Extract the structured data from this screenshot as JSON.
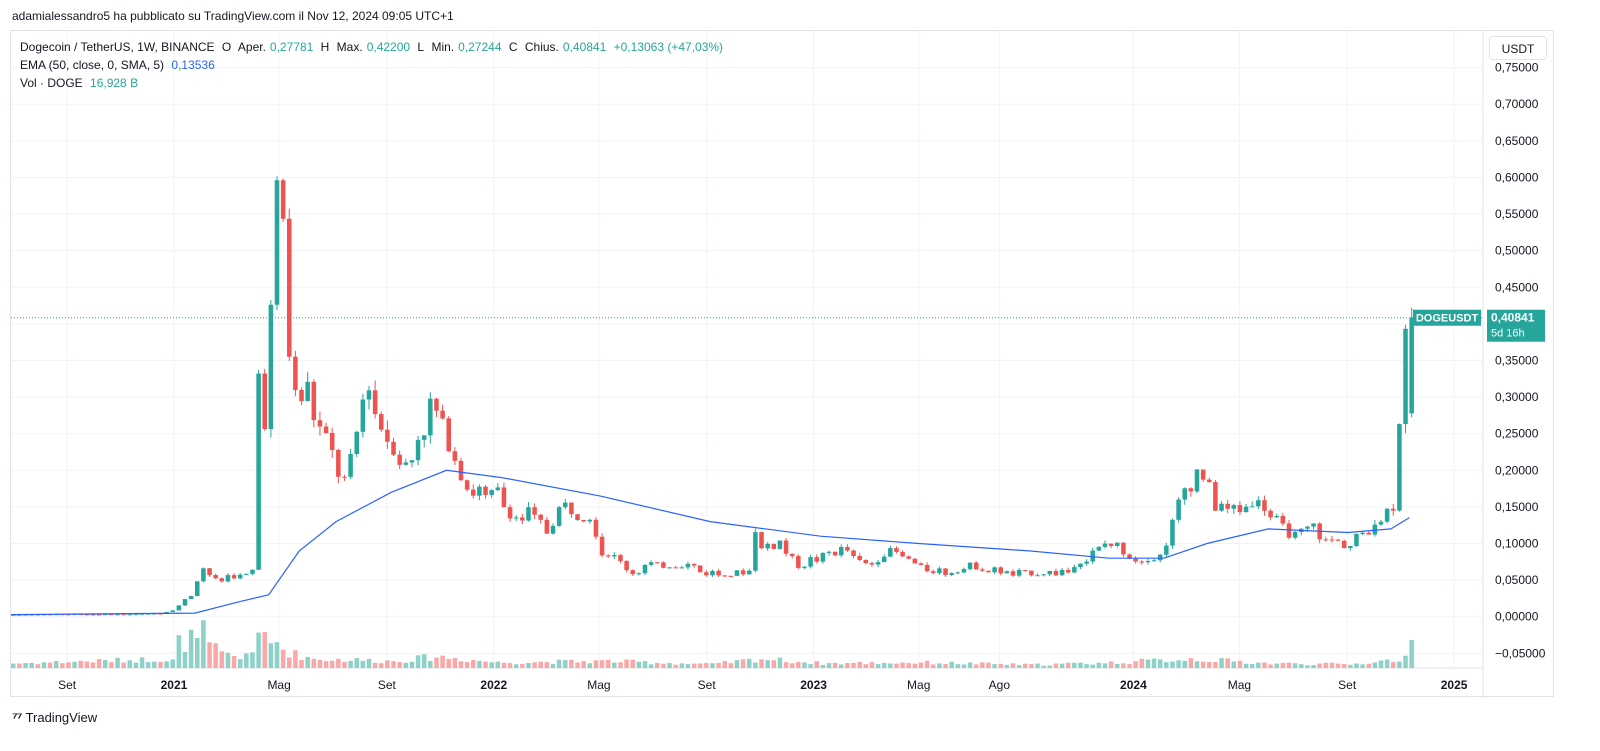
{
  "header": {
    "published_line": "adamialessandro5 ha pubblicato su TradingView.com il Nov 12, 2024 09:05 UTC+1"
  },
  "legend": {
    "symbol": "Dogecoin / TetherUS, 1W, BINANCE",
    "o_label": "O",
    "open_label": "Aper.",
    "open": "0,27781",
    "h_label": "H",
    "high_label": "Max.",
    "high": "0,42200",
    "l_label": "L",
    "low_label": "Min.",
    "low": "0,27244",
    "c_label": "C",
    "close_label": "Chius.",
    "close": "0,40841",
    "change": "+0,13063 (+47,03%)",
    "ema_label": "EMA (50, close, 0, SMA, 5)",
    "ema_value": "0,13536",
    "vol_label": "Vol · DOGE",
    "vol_value": "16,928 B"
  },
  "currency_button": "USDT",
  "last_price_tag": {
    "symbol": "DOGEUSDT",
    "price": "0,40841",
    "countdown": "5d 16h"
  },
  "footer": {
    "brand": "TradingView"
  },
  "colors": {
    "up": "#26a69a",
    "down": "#ef5350",
    "ema": "#2962ff",
    "up_vol": "#8ed1c9",
    "down_vol": "#f8a9a7"
  },
  "chart_data": {
    "type": "candlestick",
    "title": "Dogecoin / TetherUS, 1W, BINANCE",
    "y_ticks": [
      "0,75000",
      "0,70000",
      "0,65000",
      "0,60000",
      "0,55000",
      "0,50000",
      "0,45000",
      "0,40000",
      "0,35000",
      "0,30000",
      "0,25000",
      "0,20000",
      "0,15000",
      "0,10000",
      "0,05000",
      "0,00000",
      "−0,05000"
    ],
    "y_tick_values": [
      0.75,
      0.7,
      0.65,
      0.6,
      0.55,
      0.5,
      0.45,
      0.4,
      0.35,
      0.3,
      0.25,
      0.2,
      0.15,
      0.1,
      0.05,
      0.0,
      -0.05
    ],
    "ylim": [
      -0.07,
      0.8
    ],
    "x_ticks": [
      {
        "label": "Set",
        "date": "2020-09"
      },
      {
        "label": "2021",
        "date": "2021-01"
      },
      {
        "label": "Mag",
        "date": "2021-05"
      },
      {
        "label": "Set",
        "date": "2021-09"
      },
      {
        "label": "2022",
        "date": "2022-01"
      },
      {
        "label": "Mag",
        "date": "2022-05"
      },
      {
        "label": "Set",
        "date": "2022-09"
      },
      {
        "label": "2023",
        "date": "2023-01"
      },
      {
        "label": "Mag",
        "date": "2023-05"
      },
      {
        "label": "Ago",
        "date": "2023-08"
      },
      {
        "label": "2024",
        "date": "2024-01"
      },
      {
        "label": "Mag",
        "date": "2024-05"
      },
      {
        "label": "Set",
        "date": "2024-09"
      },
      {
        "label": "2025",
        "date": "2025-01"
      }
    ],
    "xlim": [
      "2020-06-29",
      "2025-02-03"
    ],
    "last_price": 0.40841,
    "series_points": [
      [
        "2020-06-29",
        0.0025
      ],
      [
        "2020-08-31",
        0.0035
      ],
      [
        "2020-11-02",
        0.0032
      ],
      [
        "2020-12-21",
        0.0045
      ],
      [
        "2021-01-04",
        0.009
      ],
      [
        "2021-01-25",
        0.03
      ],
      [
        "2021-02-08",
        0.07
      ],
      [
        "2021-02-22",
        0.05
      ],
      [
        "2021-03-15",
        0.055
      ],
      [
        "2021-03-29",
        0.055
      ],
      [
        "2021-04-05",
        0.06
      ],
      [
        "2021-04-12",
        0.32
      ],
      [
        "2021-04-19",
        0.27
      ],
      [
        "2021-04-26",
        0.41
      ],
      [
        "2021-05-03",
        0.57
      ],
      [
        "2021-05-10",
        0.51
      ],
      [
        "2021-05-17",
        0.37
      ],
      [
        "2021-05-24",
        0.3
      ],
      [
        "2021-06-07",
        0.31
      ],
      [
        "2021-06-21",
        0.25
      ],
      [
        "2021-07-05",
        0.22
      ],
      [
        "2021-07-19",
        0.18
      ],
      [
        "2021-08-02",
        0.24
      ],
      [
        "2021-08-16",
        0.32
      ],
      [
        "2021-09-06",
        0.25
      ],
      [
        "2021-09-27",
        0.2
      ],
      [
        "2021-10-11",
        0.25
      ],
      [
        "2021-10-25",
        0.28
      ],
      [
        "2021-11-08",
        0.26
      ],
      [
        "2021-11-22",
        0.22
      ],
      [
        "2021-12-06",
        0.18
      ],
      [
        "2021-12-27",
        0.16
      ],
      [
        "2022-01-10",
        0.17
      ],
      [
        "2022-01-24",
        0.14
      ],
      [
        "2022-02-14",
        0.14
      ],
      [
        "2022-03-07",
        0.12
      ],
      [
        "2022-03-28",
        0.15
      ],
      [
        "2022-04-11",
        0.14
      ],
      [
        "2022-04-25",
        0.14
      ],
      [
        "2022-05-09",
        0.09
      ],
      [
        "2022-05-23",
        0.08
      ],
      [
        "2022-06-13",
        0.06
      ],
      [
        "2022-07-04",
        0.07
      ],
      [
        "2022-08-01",
        0.07
      ],
      [
        "2022-08-15",
        0.07
      ],
      [
        "2022-09-05",
        0.06
      ],
      [
        "2022-10-03",
        0.06
      ],
      [
        "2022-10-24",
        0.06
      ],
      [
        "2022-10-31",
        0.12
      ],
      [
        "2022-11-07",
        0.09
      ],
      [
        "2022-11-28",
        0.1
      ],
      [
        "2022-12-19",
        0.07
      ],
      [
        "2023-01-09",
        0.08
      ],
      [
        "2023-02-06",
        0.09
      ],
      [
        "2023-03-06",
        0.07
      ],
      [
        "2023-04-03",
        0.09
      ],
      [
        "2023-05-01",
        0.07
      ],
      [
        "2023-06-05",
        0.06
      ],
      [
        "2023-07-03",
        0.07
      ],
      [
        "2023-08-14",
        0.06
      ],
      [
        "2023-09-11",
        0.06
      ],
      [
        "2023-10-16",
        0.06
      ],
      [
        "2023-11-13",
        0.08
      ],
      [
        "2023-12-11",
        0.1
      ],
      [
        "2024-01-08",
        0.08
      ],
      [
        "2024-02-05",
        0.08
      ],
      [
        "2024-02-26",
        0.15
      ],
      [
        "2024-03-11",
        0.18
      ],
      [
        "2024-03-25",
        0.2
      ],
      [
        "2024-04-08",
        0.15
      ],
      [
        "2024-04-22",
        0.14
      ],
      [
        "2024-05-13",
        0.16
      ],
      [
        "2024-06-03",
        0.15
      ],
      [
        "2024-06-24",
        0.12
      ],
      [
        "2024-07-08",
        0.11
      ],
      [
        "2024-07-29",
        0.12
      ],
      [
        "2024-08-12",
        0.1
      ],
      [
        "2024-09-02",
        0.1
      ],
      [
        "2024-09-23",
        0.11
      ],
      [
        "2024-10-07",
        0.13
      ],
      [
        "2024-10-21",
        0.14
      ],
      [
        "2024-10-28",
        0.15
      ],
      [
        "2024-11-04",
        0.27781
      ],
      [
        "2024-11-11",
        0.40841
      ]
    ],
    "last_candle": {
      "date": "2024-11-11",
      "open": 0.27781,
      "high": 0.422,
      "low": 0.27244,
      "close": 0.40841
    },
    "ema_points": [
      [
        "2020-06-29",
        0.003
      ],
      [
        "2021-01-25",
        0.005
      ],
      [
        "2021-03-15",
        0.02
      ],
      [
        "2021-04-19",
        0.03
      ],
      [
        "2021-05-24",
        0.09
      ],
      [
        "2021-07-05",
        0.13
      ],
      [
        "2021-09-06",
        0.17
      ],
      [
        "2021-11-08",
        0.2
      ],
      [
        "2022-01-10",
        0.19
      ],
      [
        "2022-05-02",
        0.165
      ],
      [
        "2022-09-05",
        0.13
      ],
      [
        "2023-01-09",
        0.11
      ],
      [
        "2023-05-01",
        0.1
      ],
      [
        "2023-09-04",
        0.09
      ],
      [
        "2023-12-04",
        0.08
      ],
      [
        "2024-02-05",
        0.08
      ],
      [
        "2024-03-25",
        0.1
      ],
      [
        "2024-06-03",
        0.12
      ],
      [
        "2024-09-02",
        0.115
      ],
      [
        "2024-10-21",
        0.12
      ],
      [
        "2024-11-11",
        0.13536
      ]
    ],
    "volume_points": [
      [
        "2020-06-29",
        0.1
      ],
      [
        "2020-12-28",
        0.2
      ],
      [
        "2021-01-04",
        0.6
      ],
      [
        "2021-01-11",
        0.3
      ],
      [
        "2021-01-25",
        1.0
      ],
      [
        "2021-02-01",
        0.8
      ],
      [
        "2021-02-08",
        0.5
      ],
      [
        "2021-02-22",
        0.3
      ],
      [
        "2021-03-15",
        0.2
      ],
      [
        "2021-04-12",
        0.7
      ],
      [
        "2021-04-19",
        0.5
      ],
      [
        "2021-04-26",
        0.6
      ],
      [
        "2021-05-03",
        0.4
      ],
      [
        "2021-05-17",
        0.3
      ],
      [
        "2021-06-07",
        0.2
      ],
      [
        "2021-09-06",
        0.15
      ],
      [
        "2021-10-25",
        0.25
      ],
      [
        "2022-01-03",
        0.12
      ],
      [
        "2022-05-09",
        0.15
      ],
      [
        "2022-09-05",
        0.08
      ],
      [
        "2022-10-31",
        0.2
      ],
      [
        "2023-01-09",
        0.1
      ],
      [
        "2023-05-01",
        0.12
      ],
      [
        "2023-09-04",
        0.07
      ],
      [
        "2023-12-11",
        0.12
      ],
      [
        "2024-03-04",
        0.2
      ],
      [
        "2024-06-03",
        0.1
      ],
      [
        "2024-09-02",
        0.08
      ],
      [
        "2024-11-04",
        0.2
      ],
      [
        "2024-11-11",
        0.15
      ]
    ]
  }
}
